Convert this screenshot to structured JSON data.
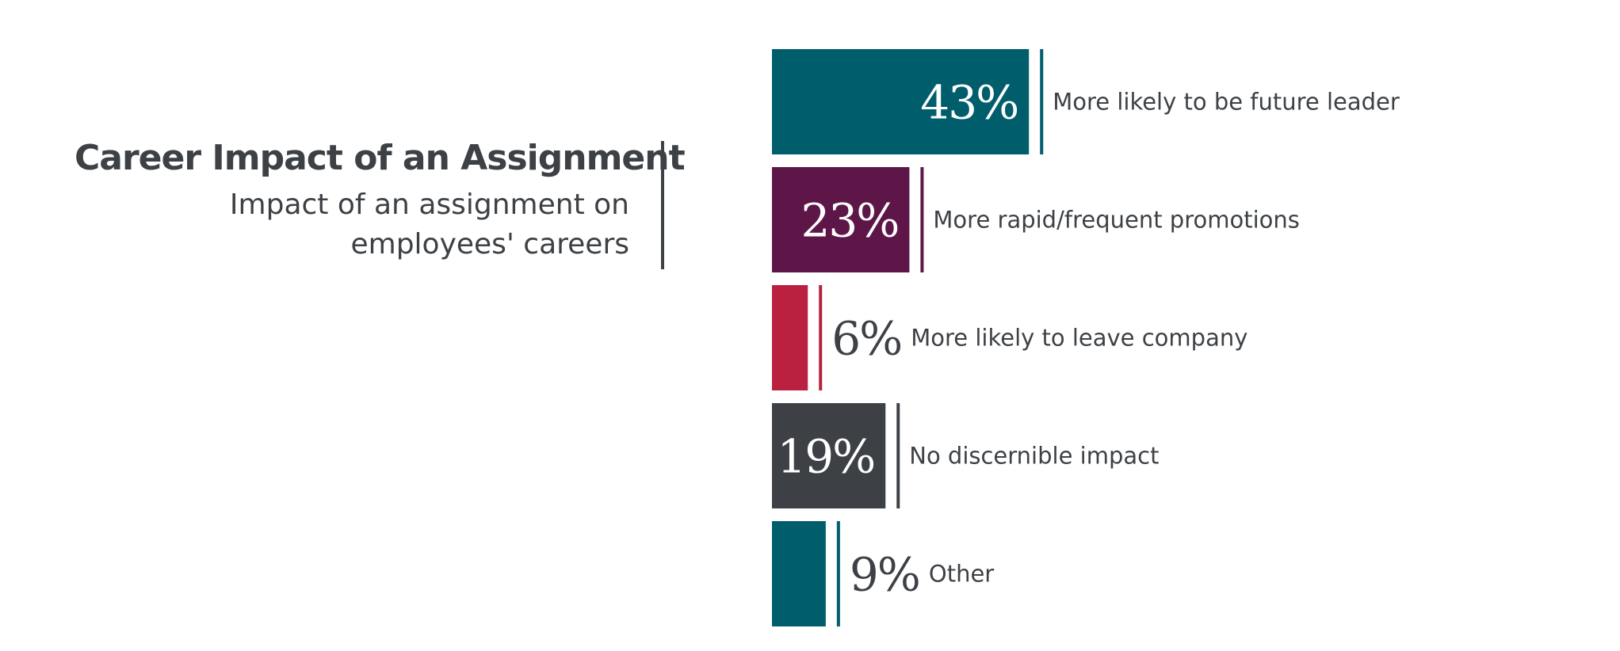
{
  "chart_data": {
    "type": "bar",
    "orientation": "horizontal",
    "title": "Career Impact of an Assignment",
    "subtitle": [
      "Impact of an assignment on",
      "employees' careers"
    ],
    "categories": [
      "More likely to be future leader",
      "More rapid/frequent promotions",
      "More likely to leave company",
      "No discernible impact",
      "Other"
    ],
    "values": [
      43,
      23,
      6,
      19,
      9
    ],
    "value_labels": [
      "43%",
      "23%",
      "6%",
      "19%",
      "9%"
    ],
    "colors": [
      "#005e6c",
      "#5e1649",
      "#ba2140",
      "#3d4145",
      "#005e6c"
    ],
    "label_color": "#3d4145",
    "grid": false,
    "legend": "none"
  }
}
